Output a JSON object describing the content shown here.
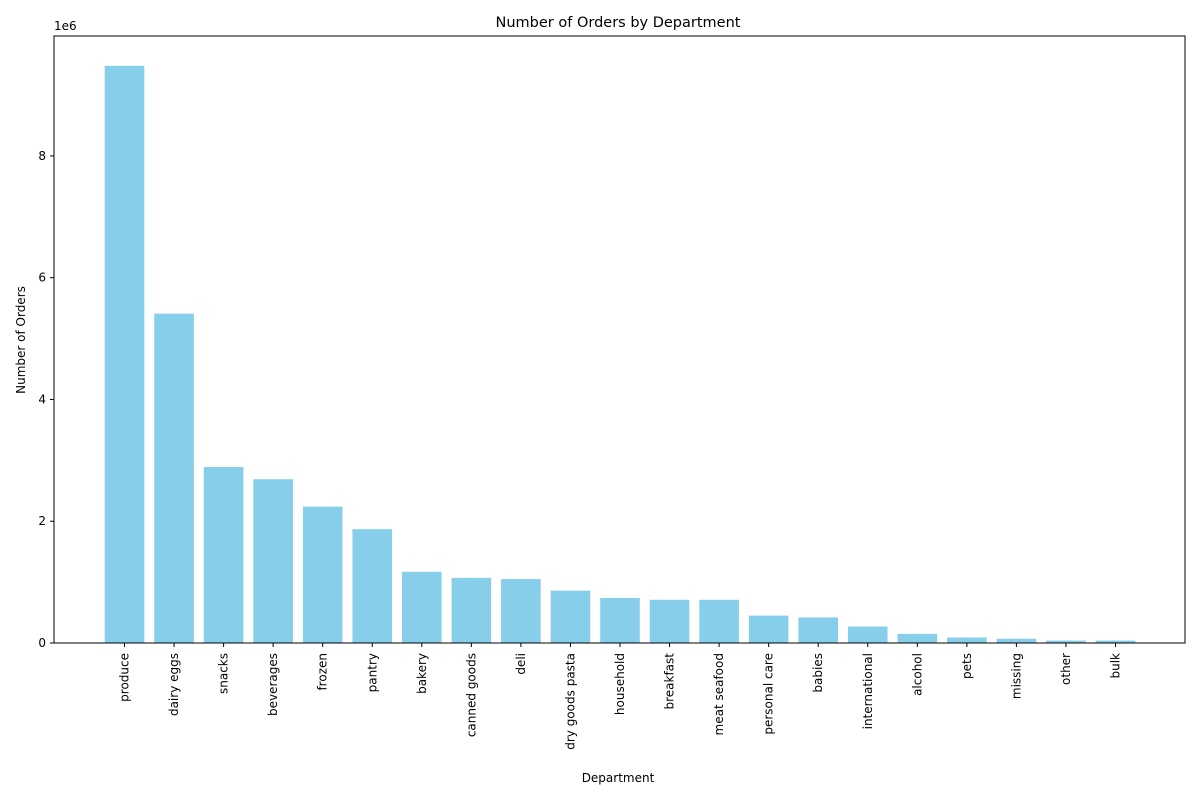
{
  "chart_data": {
    "type": "bar",
    "title": "Number of Orders by Department",
    "xlabel": "Department",
    "ylabel": "Number of Orders",
    "y_scale_label": "1e6",
    "ylim": [
      0,
      9.97
    ],
    "y_ticks": [
      0,
      2,
      4,
      6,
      8
    ],
    "y_tick_labels": [
      "0",
      "2",
      "4",
      "6",
      "8"
    ],
    "grid": false,
    "bar_color": "#87ceeb",
    "categories": [
      "produce",
      "dairy eggs",
      "snacks",
      "beverages",
      "frozen",
      "pantry",
      "bakery",
      "canned goods",
      "deli",
      "dry goods pasta",
      "household",
      "breakfast",
      "meat seafood",
      "personal care",
      "babies",
      "international",
      "alcohol",
      "pets",
      "missing",
      "other",
      "bulk"
    ],
    "values": [
      9.48,
      5.41,
      2.89,
      2.69,
      2.24,
      1.87,
      1.17,
      1.07,
      1.05,
      0.86,
      0.74,
      0.71,
      0.71,
      0.45,
      0.42,
      0.27,
      0.15,
      0.09,
      0.07,
      0.04,
      0.04
    ]
  }
}
